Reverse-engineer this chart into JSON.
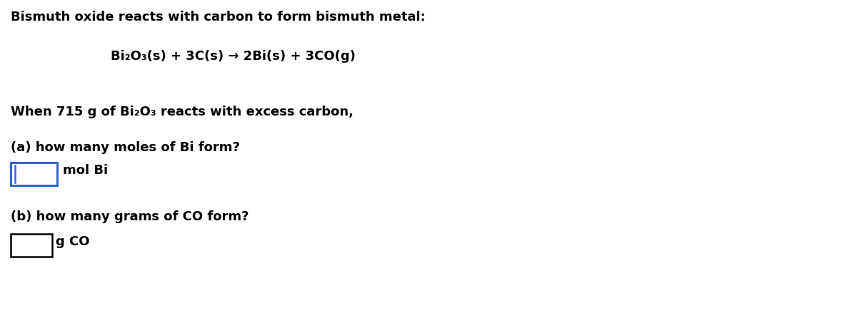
{
  "background_color": "#ffffff",
  "line1": "Bismuth oxide reacts with carbon to form bismuth metal:",
  "equation": "Bi₂O₃(s) + 3C(s) → 2Bi(s) + 3CO(g)",
  "line3": "When 715 g of Bi₂O₃ reacts with excess carbon,",
  "line4a": "(a) how many moles of Bi form?",
  "label_a": "mol Bi",
  "line4b": "(b) how many grams of CO form?",
  "label_b": "g CO",
  "box_a_color": "#3366cc",
  "box_b_color": "#000000",
  "text_color": "#000000",
  "font_size_main": 13,
  "font_size_eq": 13,
  "fig_width": 12.0,
  "fig_height": 4.67,
  "dpi": 100
}
